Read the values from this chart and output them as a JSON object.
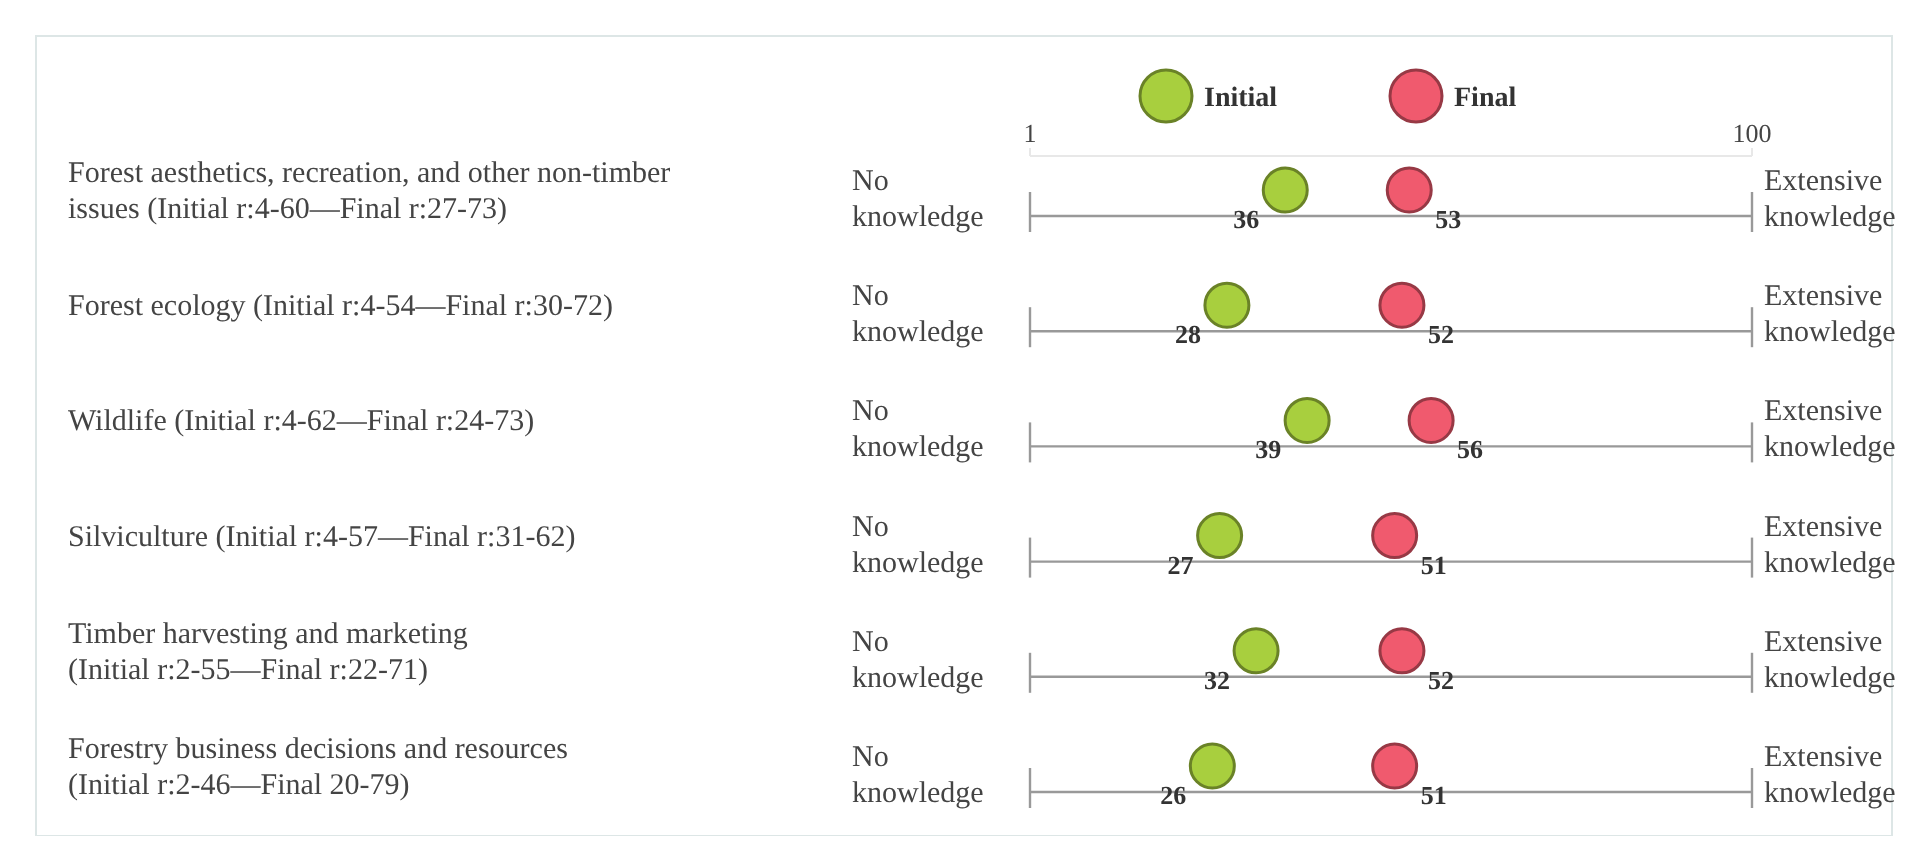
{
  "chart_data": {
    "type": "scatter",
    "orientation": "horizontal",
    "categories": [
      "Forest aesthetics, recreation, and other non-timber issues (Initial r:4-60—Final r:27-73)",
      "Forest ecology (Initial r:4-54—Final r:30-72)",
      "Wildlife (Initial r:4-62—Final r:24-73)",
      "Silviculture (Initial r:4-57—Final r:31-62)",
      "Timber harvesting and marketing (Initial r:2-55—Final r:22-71)",
      "Forestry business decisions and resources (Initial r:2-46—Final 20-79)"
    ],
    "series": [
      {
        "name": "Initial",
        "color": "#a8cf3e",
        "values": [
          36,
          28,
          39,
          27,
          32,
          26
        ]
      },
      {
        "name": "Final",
        "color": "#f05a6e",
        "values": [
          53,
          52,
          56,
          51,
          52,
          51
        ]
      }
    ],
    "x2lim": [
      1,
      100
    ],
    "x2ticks": [
      1,
      100
    ],
    "annotations": [
      "No knowledge",
      "Extensive knowledge"
    ],
    "data_labels": true,
    "legend": "top",
    "marker": "circle"
  }
}
